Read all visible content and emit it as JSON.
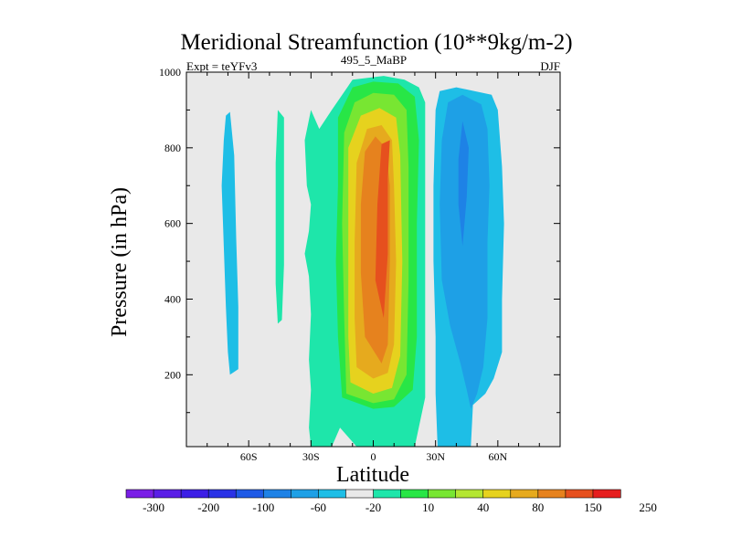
{
  "chart_data": {
    "type": "contour",
    "title": "Meridional Streamfunction (10**9kg/m-2)",
    "left_label": "Expt = teYFv3",
    "center_label": "495_5_MaBP",
    "right_label": "DJF",
    "xlabel": "Latitude",
    "ylabel": "Pressure (in hPa)",
    "x_ticks": [
      {
        "label": "60S",
        "value": -60
      },
      {
        "label": "30S",
        "value": -30
      },
      {
        "label": "0",
        "value": 0
      },
      {
        "label": "30N",
        "value": 30
      },
      {
        "label": "60N",
        "value": 60
      }
    ],
    "y_ticks": [
      {
        "label": "200",
        "value": 200
      },
      {
        "label": "400",
        "value": 400
      },
      {
        "label": "600",
        "value": 600
      },
      {
        "label": "800",
        "value": 800
      },
      {
        "label": "1000",
        "value": 1000
      }
    ],
    "xlim": [
      -90,
      90
    ],
    "ylim": [
      1000,
      10
    ],
    "colorbar": {
      "colors": [
        "#7a1ee6",
        "#5a1ee6",
        "#3c1ee6",
        "#2a32e6",
        "#1e5ae6",
        "#1e82e6",
        "#1ea0e6",
        "#1ebee6",
        "#e9e9e9",
        "#1ee6aa",
        "#28e646",
        "#78e632",
        "#b4e632",
        "#e6d21e",
        "#e6aa1e",
        "#e6821e",
        "#e6501e",
        "#e61e1e"
      ],
      "labels": [
        {
          "text": "-300",
          "boundary": 1
        },
        {
          "text": "-200",
          "boundary": 3
        },
        {
          "text": "-100",
          "boundary": 5
        },
        {
          "text": "-60",
          "boundary": 7
        },
        {
          "text": "-20",
          "boundary": 9
        },
        {
          "text": "10",
          "boundary": 11
        },
        {
          "text": "40",
          "boundary": 13
        },
        {
          "text": "80",
          "boundary": 15
        },
        {
          "text": "150",
          "boundary": 17
        },
        {
          "text": "250",
          "boundary": 19
        }
      ]
    },
    "regions": [
      {
        "name": "region-sh-high-lat-negative",
        "color": "#1ebee6",
        "points": [
          [
            -72,
            820
          ],
          [
            -73,
            700
          ],
          [
            -72,
            540
          ],
          [
            -71,
            380
          ],
          [
            -70,
            260
          ],
          [
            -69,
            200
          ],
          [
            -65,
            215
          ],
          [
            -65,
            380
          ],
          [
            -66,
            560
          ],
          [
            -67,
            780
          ],
          [
            -69,
            895
          ],
          [
            -71,
            885
          ]
        ]
      },
      {
        "name": "region-sh-mid-lat-positive",
        "color": "#1ee6aa",
        "points": [
          [
            -47,
            525
          ],
          [
            -47,
            440
          ],
          [
            -46,
            335
          ],
          [
            -44,
            345
          ],
          [
            -43,
            490
          ],
          [
            -43,
            690
          ],
          [
            -43,
            880
          ],
          [
            -46,
            900
          ],
          [
            -47,
            760
          ]
        ]
      },
      {
        "name": "region-tropical-cell-outer",
        "color": "#1ee6aa",
        "points": [
          [
            -30,
            10
          ],
          [
            -20,
            10
          ],
          [
            -16,
            60
          ],
          [
            -8,
            10
          ],
          [
            20,
            10
          ],
          [
            25,
            140
          ],
          [
            25,
            400
          ],
          [
            25,
            700
          ],
          [
            25,
            920
          ],
          [
            22,
            960
          ],
          [
            15,
            980
          ],
          [
            5,
            990
          ],
          [
            -10,
            980
          ],
          [
            -20,
            900
          ],
          [
            -26,
            850
          ],
          [
            -30,
            900
          ],
          [
            -33,
            820
          ],
          [
            -32,
            700
          ],
          [
            -30,
            650
          ],
          [
            -31,
            580
          ],
          [
            -33,
            520
          ],
          [
            -31,
            460
          ],
          [
            -30,
            360
          ],
          [
            -31,
            240
          ],
          [
            -30,
            160
          ],
          [
            -31,
            60
          ]
        ]
      },
      {
        "name": "region-tropical-cell-10",
        "color": "#28e646",
        "points": [
          [
            -15,
            140
          ],
          [
            0,
            110
          ],
          [
            10,
            115
          ],
          [
            19,
            160
          ],
          [
            21,
            300
          ],
          [
            21,
            600
          ],
          [
            22,
            820
          ],
          [
            20,
            935
          ],
          [
            12,
            970
          ],
          [
            0,
            975
          ],
          [
            -10,
            960
          ],
          [
            -17,
            880
          ],
          [
            -17,
            700
          ],
          [
            -18,
            500
          ],
          [
            -17,
            300
          ]
        ]
      },
      {
        "name": "region-tropical-cell-40",
        "color": "#78e632",
        "points": [
          [
            -13,
            150
          ],
          [
            0,
            125
          ],
          [
            10,
            135
          ],
          [
            16,
            200
          ],
          [
            17,
            450
          ],
          [
            17,
            750
          ],
          [
            16,
            900
          ],
          [
            10,
            940
          ],
          [
            0,
            945
          ],
          [
            -9,
            920
          ],
          [
            -14,
            840
          ],
          [
            -15,
            600
          ],
          [
            -14,
            350
          ]
        ]
      },
      {
        "name": "region-tropical-cell-80",
        "color": "#e6d21e",
        "points": [
          [
            -11,
            180
          ],
          [
            0,
            150
          ],
          [
            9,
            165
          ],
          [
            13,
            250
          ],
          [
            14,
            500
          ],
          [
            13,
            780
          ],
          [
            11,
            880
          ],
          [
            3,
            905
          ],
          [
            -6,
            885
          ],
          [
            -12,
            800
          ],
          [
            -12,
            550
          ],
          [
            -12,
            300
          ]
        ]
      },
      {
        "name": "region-tropical-cell-150",
        "color": "#e6aa1e",
        "points": [
          [
            -8,
            220
          ],
          [
            0,
            190
          ],
          [
            7,
            205
          ],
          [
            10,
            280
          ],
          [
            11,
            500
          ],
          [
            10,
            700
          ],
          [
            9,
            820
          ],
          [
            4,
            860
          ],
          [
            -3,
            850
          ],
          [
            -8,
            760
          ],
          [
            -9,
            550
          ],
          [
            -9,
            350
          ]
        ]
      },
      {
        "name": "region-tropical-cell-250",
        "color": "#e6821e",
        "points": [
          [
            -4,
            300
          ],
          [
            4,
            230
          ],
          [
            7,
            280
          ],
          [
            8,
            500
          ],
          [
            8,
            700
          ],
          [
            6,
            800
          ],
          [
            1,
            830
          ],
          [
            -4,
            790
          ],
          [
            -6,
            650
          ],
          [
            -6,
            470
          ]
        ]
      },
      {
        "name": "region-tropical-cell-core",
        "color": "#e6501e",
        "points": [
          [
            5,
            350
          ],
          [
            7,
            520
          ],
          [
            7,
            720
          ],
          [
            8,
            820
          ],
          [
            4,
            810
          ],
          [
            2,
            650
          ],
          [
            1,
            450
          ]
        ]
      },
      {
        "name": "region-nh-negative-outer",
        "color": "#1ebee6",
        "points": [
          [
            31,
            10
          ],
          [
            47,
            10
          ],
          [
            48,
            120
          ],
          [
            54,
            150
          ],
          [
            58,
            190
          ],
          [
            62,
            260
          ],
          [
            62,
            400
          ],
          [
            63,
            600
          ],
          [
            62,
            750
          ],
          [
            60,
            900
          ],
          [
            57,
            940
          ],
          [
            40,
            960
          ],
          [
            32,
            950
          ],
          [
            30,
            900
          ],
          [
            29,
            700
          ],
          [
            29,
            500
          ],
          [
            30,
            300
          ],
          [
            30,
            150
          ]
        ]
      },
      {
        "name": "region-nh-negative-inner",
        "color": "#1ea0e6",
        "points": [
          [
            47,
            110
          ],
          [
            50,
            150
          ],
          [
            53,
            220
          ],
          [
            55,
            350
          ],
          [
            55,
            550
          ],
          [
            56,
            700
          ],
          [
            55,
            850
          ],
          [
            52,
            915
          ],
          [
            43,
            940
          ],
          [
            36,
            920
          ],
          [
            33,
            820
          ],
          [
            32,
            650
          ],
          [
            33,
            450
          ],
          [
            37,
            330
          ],
          [
            42,
            230
          ],
          [
            45,
            160
          ]
        ]
      },
      {
        "name": "region-nh-negative-core",
        "color": "#1e82e6",
        "points": [
          [
            43,
            540
          ],
          [
            45,
            670
          ],
          [
            46,
            800
          ],
          [
            43,
            870
          ],
          [
            41,
            770
          ],
          [
            41,
            650
          ]
        ]
      }
    ]
  }
}
